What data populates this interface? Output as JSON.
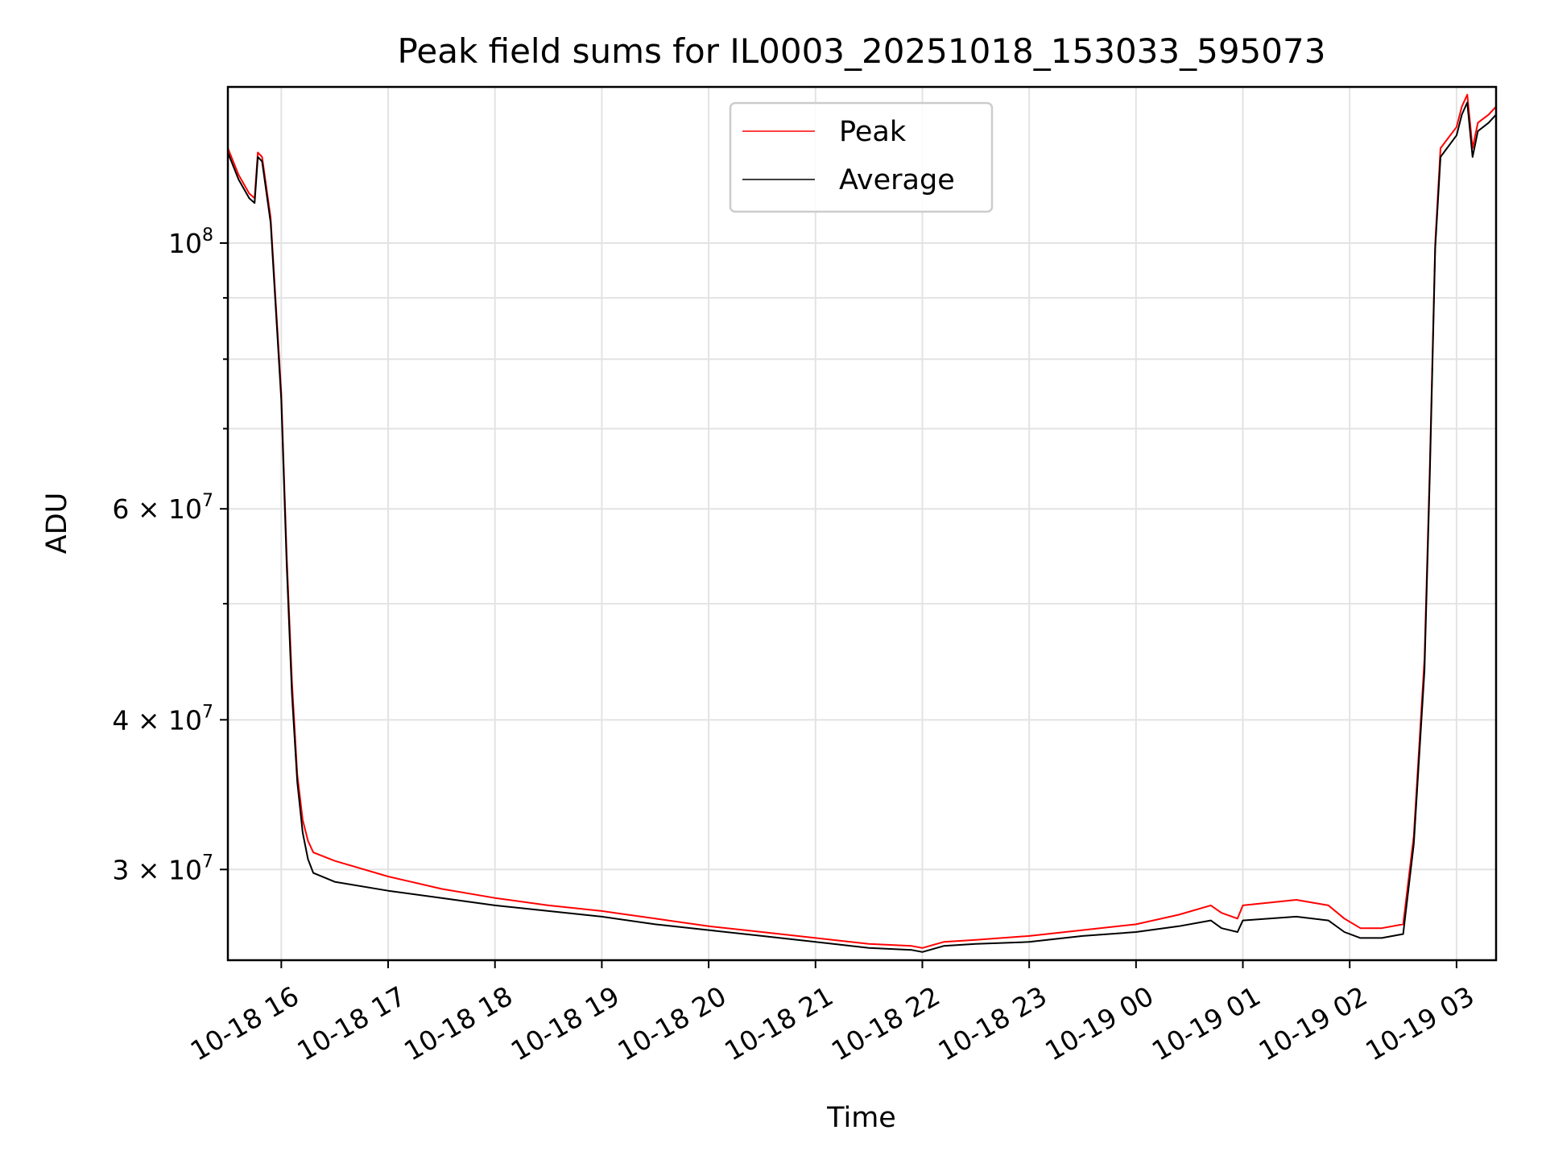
{
  "chart_data": {
    "type": "line",
    "title": "Peak field sums for IL0003_20251018_153033_595073",
    "xlabel": "Time",
    "ylabel": "ADU",
    "x_unit": "hours since 10-18 00:00",
    "xlim": [
      15.5,
      27.37
    ],
    "y_scale": "log",
    "ylim": [
      25200000,
      135000000
    ],
    "grid": true,
    "legend_position": "upper-center",
    "x_ticks": [
      {
        "value": 16,
        "label": "10-18 16"
      },
      {
        "value": 17,
        "label": "10-18 17"
      },
      {
        "value": 18,
        "label": "10-18 18"
      },
      {
        "value": 19,
        "label": "10-18 19"
      },
      {
        "value": 20,
        "label": "10-18 20"
      },
      {
        "value": 21,
        "label": "10-18 21"
      },
      {
        "value": 22,
        "label": "10-18 22"
      },
      {
        "value": 23,
        "label": "10-18 23"
      },
      {
        "value": 24,
        "label": "10-19 00"
      },
      {
        "value": 25,
        "label": "10-19 01"
      },
      {
        "value": 26,
        "label": "10-19 02"
      },
      {
        "value": 27,
        "label": "10-19 03"
      }
    ],
    "y_major_ticks": [
      {
        "value": 30000000,
        "mantissa": "3",
        "base": "10",
        "exponent": "7"
      },
      {
        "value": 40000000,
        "mantissa": "4",
        "base": "10",
        "exponent": "7"
      },
      {
        "value": 60000000,
        "mantissa": "6",
        "base": "10",
        "exponent": "7"
      },
      {
        "value": 100000000,
        "mantissa": "",
        "base": "10",
        "exponent": "8"
      }
    ],
    "y_grid_values": [
      30000000,
      40000000,
      50000000,
      60000000,
      70000000,
      80000000,
      90000000,
      100000000
    ],
    "series": [
      {
        "name": "Peak",
        "color": "#ff0000",
        "x": [
          15.5,
          15.6,
          15.7,
          15.75,
          15.78,
          15.82,
          15.9,
          16.0,
          16.05,
          16.1,
          16.15,
          16.2,
          16.25,
          16.3,
          16.5,
          17.0,
          17.5,
          18.0,
          18.5,
          19.0,
          19.5,
          20.0,
          20.5,
          21.0,
          21.5,
          21.9,
          22.0,
          22.2,
          22.5,
          23.0,
          23.5,
          24.0,
          24.4,
          24.7,
          24.8,
          24.95,
          25.0,
          25.5,
          25.8,
          25.95,
          26.1,
          26.3,
          26.5,
          26.6,
          26.7,
          26.75,
          26.8,
          26.85,
          27.0,
          27.05,
          27.1,
          27.15,
          27.2,
          27.3,
          27.37
        ],
        "y": [
          120000000,
          114000000,
          110000000,
          109000000,
          119000000,
          118000000,
          105000000,
          75000000,
          55000000,
          43000000,
          36000000,
          33000000,
          31700000,
          31000000,
          30500000,
          29600000,
          28900000,
          28400000,
          28000000,
          27700000,
          27300000,
          26900000,
          26600000,
          26300000,
          26000000,
          25900000,
          25800000,
          26100000,
          26200000,
          26400000,
          26700000,
          27000000,
          27500000,
          28000000,
          27600000,
          27300000,
          28000000,
          28300000,
          28000000,
          27300000,
          26800000,
          26800000,
          27000000,
          32000000,
          45000000,
          65000000,
          100000000,
          120000000,
          125000000,
          130000000,
          133000000,
          120000000,
          126000000,
          128000000,
          130000000
        ]
      },
      {
        "name": "Average",
        "color": "#000000",
        "x": [
          15.5,
          15.6,
          15.7,
          15.75,
          15.78,
          15.82,
          15.9,
          16.0,
          16.05,
          16.1,
          16.15,
          16.2,
          16.25,
          16.3,
          16.5,
          17.0,
          17.5,
          18.0,
          18.5,
          19.0,
          19.5,
          20.0,
          20.5,
          21.0,
          21.5,
          21.9,
          22.0,
          22.2,
          22.5,
          23.0,
          23.5,
          24.0,
          24.4,
          24.7,
          24.8,
          24.95,
          25.0,
          25.5,
          25.8,
          25.95,
          26.1,
          26.3,
          26.5,
          26.6,
          26.7,
          26.75,
          26.8,
          26.85,
          27.0,
          27.05,
          27.1,
          27.15,
          27.2,
          27.3,
          27.37
        ],
        "y": [
          119000000,
          113000000,
          109000000,
          108000000,
          118000000,
          117000000,
          104000000,
          74000000,
          54000000,
          42000000,
          35500000,
          32200000,
          30600000,
          29800000,
          29300000,
          28800000,
          28400000,
          28000000,
          27700000,
          27400000,
          27000000,
          26700000,
          26400000,
          26100000,
          25800000,
          25700000,
          25600000,
          25900000,
          26000000,
          26100000,
          26400000,
          26600000,
          26900000,
          27200000,
          26800000,
          26600000,
          27200000,
          27400000,
          27200000,
          26600000,
          26300000,
          26300000,
          26500000,
          31500000,
          44000000,
          64000000,
          99000000,
          118000000,
          123000000,
          128000000,
          131000000,
          118000000,
          124000000,
          126000000,
          128000000
        ]
      }
    ]
  }
}
